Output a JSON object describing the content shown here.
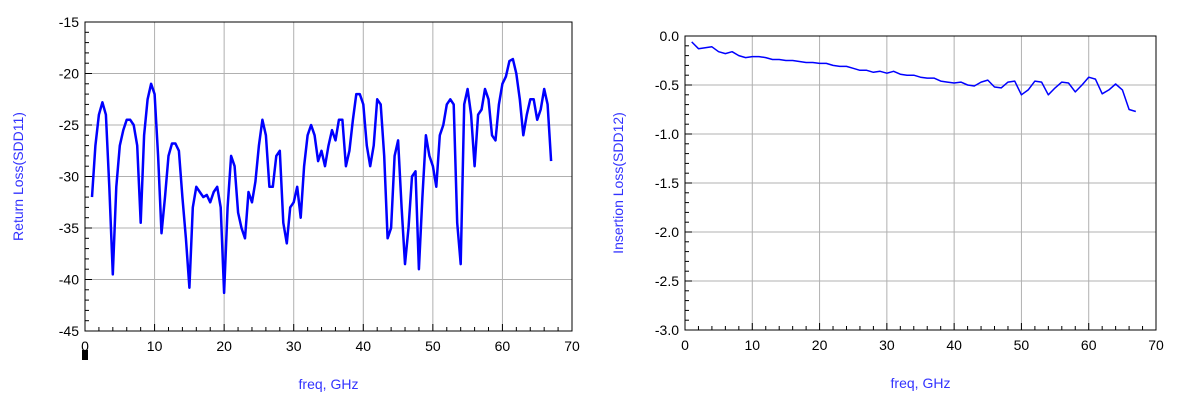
{
  "colors": {
    "series": "#0000ff",
    "label": "#3333ff",
    "grid": "#b0b0b0",
    "frame": "#000000"
  },
  "chart_data": [
    {
      "type": "line",
      "xlabel": "freq, GHz",
      "ylabel": "Return Loss(SDD11)",
      "xlim": [
        0,
        70
      ],
      "ylim": [
        -45,
        -15
      ],
      "xticks": [
        0,
        10,
        20,
        30,
        40,
        50,
        60,
        70
      ],
      "yticks": [
        -45,
        -40,
        -35,
        -30,
        -25,
        -20,
        -15
      ],
      "xtick_labels": [
        "0",
        "10",
        "20",
        "30",
        "40",
        "50",
        "60",
        "70"
      ],
      "ytick_labels": [
        "-45",
        "-40",
        "-35",
        "-30",
        "-25",
        "-20",
        "-15"
      ],
      "grid": true,
      "series": [
        {
          "x": [
            1,
            1.5,
            2,
            2.5,
            3,
            3.5,
            4,
            4.5,
            5,
            5.5,
            6,
            6.5,
            7,
            7.5,
            8,
            8.5,
            9,
            9.5,
            10,
            10.5,
            11,
            11.5,
            12,
            12.5,
            13,
            13.5,
            14,
            14.5,
            15,
            15.5,
            16,
            16.5,
            17,
            17.5,
            18,
            18.5,
            19,
            19.5,
            20,
            20.5,
            21,
            21.5,
            22,
            22.5,
            23,
            23.5,
            24,
            24.5,
            25,
            25.5,
            26,
            26.5,
            27,
            27.5,
            28,
            28.5,
            29,
            29.5,
            30,
            30.5,
            31,
            31.5,
            32,
            32.5,
            33,
            33.5,
            34,
            34.5,
            35,
            35.5,
            36,
            36.5,
            37,
            37.5,
            38,
            38.5,
            39,
            39.5,
            40,
            40.5,
            41,
            41.5,
            42,
            42.5,
            43,
            43.5,
            44,
            44.5,
            45,
            45.5,
            46,
            46.5,
            47,
            47.5,
            48,
            48.5,
            49,
            49.5,
            50,
            50.5,
            51,
            51.5,
            52,
            52.5,
            53,
            53.5,
            54,
            54.5,
            55,
            55.5,
            56,
            56.5,
            57,
            57.5,
            58,
            58.5,
            59,
            59.5,
            60,
            60.5,
            61,
            61.5,
            62,
            62.5,
            63,
            63.5,
            64,
            64.5,
            65,
            65.5,
            66,
            66.5,
            67
          ],
          "values": [
            -32,
            -27,
            -24,
            -22.8,
            -24,
            -31,
            -39.5,
            -31,
            -27,
            -25.5,
            -24.5,
            -24.5,
            -25,
            -27,
            -34.5,
            -26,
            -22.5,
            -21,
            -22,
            -28,
            -35.5,
            -32,
            -28,
            -26.8,
            -26.8,
            -27.5,
            -32,
            -36,
            -40.8,
            -33,
            -31,
            -31.5,
            -32,
            -31.8,
            -32.5,
            -31.5,
            -31,
            -33,
            -41.3,
            -33,
            -28,
            -29,
            -33.5,
            -35,
            -36,
            -31.5,
            -32.5,
            -30.5,
            -27,
            -24.5,
            -26,
            -31,
            -31,
            -28,
            -27.5,
            -34.5,
            -36.5,
            -33,
            -32.5,
            -31,
            -34,
            -29,
            -26,
            -25,
            -26,
            -28.5,
            -27.5,
            -29,
            -27,
            -25.5,
            -26.5,
            -24.5,
            -24.5,
            -29,
            -27.5,
            -24.5,
            -22,
            -22,
            -23,
            -27,
            -29,
            -27,
            -22.5,
            -23,
            -28,
            -36,
            -35,
            -28,
            -26.5,
            -33,
            -38.5,
            -35,
            -30,
            -29.5,
            -39,
            -32,
            -26,
            -28,
            -29,
            -31,
            -26,
            -25,
            -23,
            -22.5,
            -23,
            -34.5,
            -38.5,
            -23,
            -21.5,
            -24,
            -29,
            -24,
            -23.5,
            -21.5,
            -22.5,
            -26,
            -26.5,
            -23,
            -21,
            -20.3,
            -18.8,
            -18.6,
            -20,
            -22.5,
            -26,
            -24,
            -22.5,
            -22.5,
            -24.5,
            -23.5,
            -21.5,
            -23,
            -28.5
          ]
        }
      ]
    },
    {
      "type": "line",
      "xlabel": "freq, GHz",
      "ylabel": "Insertion Loss(SDD12)",
      "xlim": [
        0,
        70
      ],
      "ylim": [
        -3,
        0
      ],
      "xticks": [
        0,
        10,
        20,
        30,
        40,
        50,
        60,
        70
      ],
      "yticks": [
        -3,
        -2.5,
        -2,
        -1.5,
        -1,
        -0.5,
        0
      ],
      "xtick_labels": [
        "0",
        "10",
        "20",
        "30",
        "40",
        "50",
        "60",
        "70"
      ],
      "ytick_labels": [
        "-3.0",
        "-2.5",
        "-2.0",
        "-1.5",
        "-1.0",
        "-0.5",
        "0.0"
      ],
      "grid": true,
      "series": [
        {
          "x": [
            1,
            2,
            3,
            4,
            5,
            6,
            7,
            8,
            9,
            10,
            11,
            12,
            13,
            14,
            15,
            16,
            17,
            18,
            19,
            20,
            21,
            22,
            23,
            24,
            25,
            26,
            27,
            28,
            29,
            30,
            31,
            32,
            33,
            34,
            35,
            36,
            37,
            38,
            39,
            40,
            41,
            42,
            43,
            44,
            45,
            46,
            47,
            48,
            49,
            50,
            51,
            52,
            53,
            54,
            55,
            56,
            57,
            58,
            59,
            60,
            61,
            62,
            63,
            64,
            65,
            66,
            67
          ],
          "values": [
            -0.06,
            -0.13,
            -0.12,
            -0.11,
            -0.16,
            -0.18,
            -0.16,
            -0.2,
            -0.22,
            -0.21,
            -0.21,
            -0.22,
            -0.24,
            -0.24,
            -0.25,
            -0.25,
            -0.26,
            -0.27,
            -0.27,
            -0.28,
            -0.28,
            -0.3,
            -0.31,
            -0.31,
            -0.33,
            -0.35,
            -0.35,
            -0.37,
            -0.36,
            -0.38,
            -0.36,
            -0.39,
            -0.4,
            -0.4,
            -0.42,
            -0.43,
            -0.43,
            -0.46,
            -0.47,
            -0.48,
            -0.47,
            -0.5,
            -0.51,
            -0.47,
            -0.45,
            -0.52,
            -0.53,
            -0.47,
            -0.46,
            -0.6,
            -0.55,
            -0.46,
            -0.47,
            -0.6,
            -0.53,
            -0.47,
            -0.48,
            -0.57,
            -0.5,
            -0.42,
            -0.44,
            -0.59,
            -0.55,
            -0.49,
            -0.55,
            -0.75,
            -0.77
          ]
        }
      ]
    }
  ]
}
